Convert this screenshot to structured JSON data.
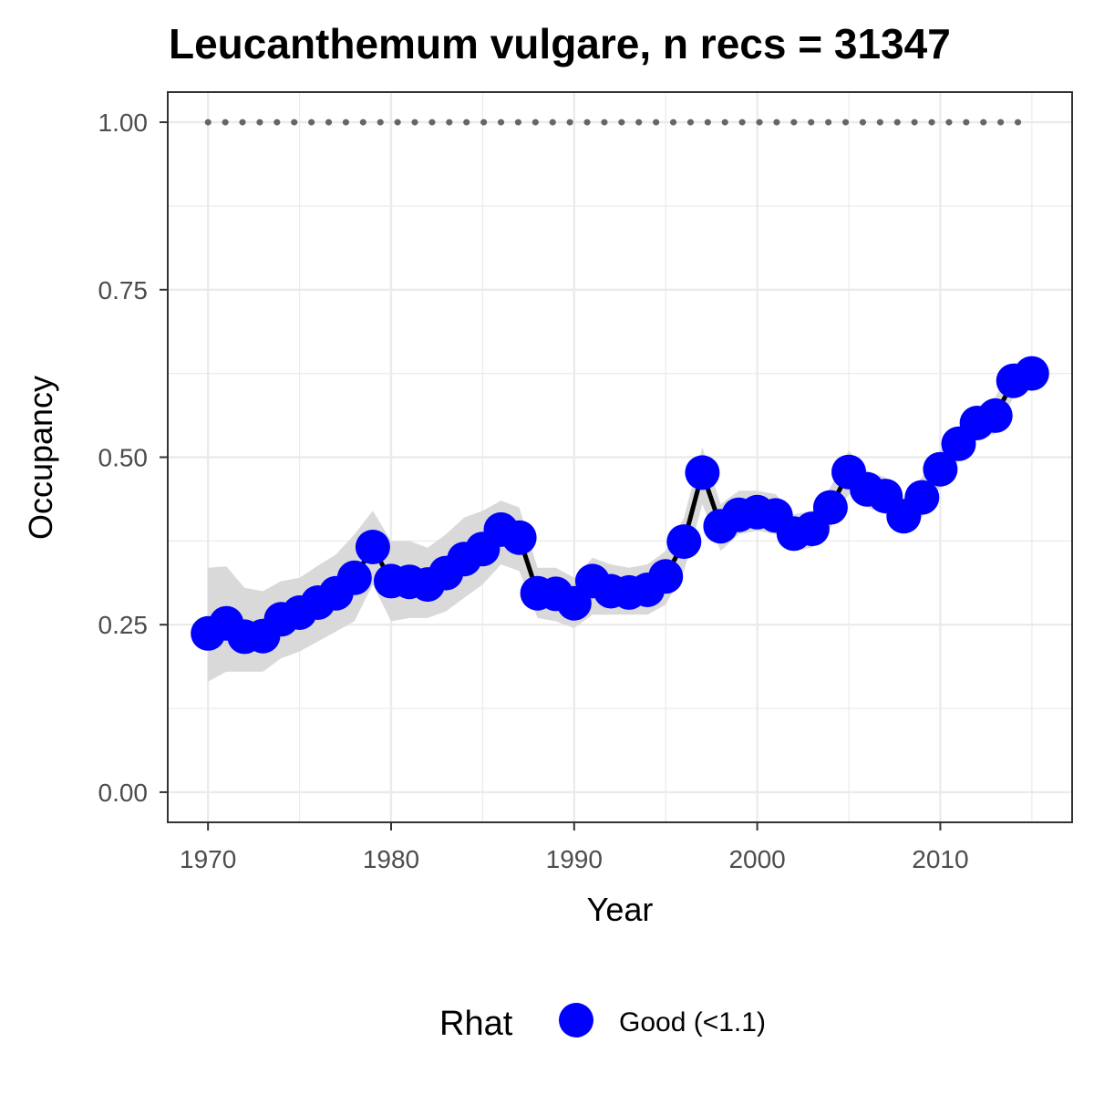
{
  "chart_data": {
    "type": "line",
    "title": "Leucanthemum vulgare, n recs = 31347",
    "xlabel": "Year",
    "ylabel": "Occupancy",
    "xlim": [
      1967.8,
      2017.2
    ],
    "ylim": [
      -0.045,
      1.045
    ],
    "x_ticks": [
      1970,
      1980,
      1990,
      2000,
      2010
    ],
    "x_tick_labels": [
      "1970",
      "1980",
      "1990",
      "2000",
      "2010"
    ],
    "x_minor_ticks": [
      1975,
      1985,
      1995,
      2005,
      2015
    ],
    "y_ticks": [
      0,
      0.25,
      0.5,
      0.75,
      1.0
    ],
    "y_tick_labels": [
      "0.00",
      "0.25",
      "0.50",
      "0.75",
      "1.00"
    ],
    "y_minor_ticks": [
      0.125,
      0.375,
      0.625,
      0.875
    ],
    "grid": true,
    "legend": {
      "title": "Rhat",
      "position": "bottom",
      "entries": [
        {
          "label": "Good (<1.1)",
          "color": "#0000ff"
        }
      ]
    },
    "colors": {
      "points": "#0000ff",
      "line": "#000000",
      "ribbon": "#d9d9d9",
      "reference_line": "#666666",
      "grid": "#ebebeb",
      "panel_border": "#333333"
    },
    "reference_line": {
      "y": 1.0,
      "style": "dotted"
    },
    "series": [
      {
        "x": [
          1970,
          1971,
          1972,
          1973,
          1974,
          1975,
          1976,
          1977,
          1978,
          1979,
          1980,
          1981,
          1982,
          1983,
          1984,
          1985,
          1986,
          1987,
          1988,
          1989,
          1990,
          1991,
          1992,
          1993,
          1994,
          1995,
          1996,
          1997,
          1998,
          1999,
          2000,
          2001,
          2002,
          2003,
          2004,
          2005,
          2006,
          2007,
          2008,
          2009,
          2010,
          2011,
          2012,
          2013,
          2014,
          2015
        ],
        "values": [
          0.237,
          0.252,
          0.232,
          0.233,
          0.258,
          0.268,
          0.283,
          0.297,
          0.32,
          0.366,
          0.315,
          0.314,
          0.31,
          0.327,
          0.348,
          0.363,
          0.392,
          0.38,
          0.297,
          0.296,
          0.282,
          0.315,
          0.3,
          0.298,
          0.302,
          0.322,
          0.374,
          0.477,
          0.397,
          0.414,
          0.418,
          0.413,
          0.386,
          0.393,
          0.425,
          0.478,
          0.452,
          0.442,
          0.412,
          0.44,
          0.482,
          0.52,
          0.551,
          0.562,
          0.614,
          0.625
        ],
        "lower": [
          0.165,
          0.18,
          0.18,
          0.18,
          0.2,
          0.21,
          0.225,
          0.24,
          0.255,
          0.31,
          0.255,
          0.26,
          0.26,
          0.27,
          0.29,
          0.31,
          0.34,
          0.33,
          0.26,
          0.255,
          0.245,
          0.265,
          0.265,
          0.265,
          0.265,
          0.28,
          0.33,
          0.43,
          0.36,
          0.385,
          0.39,
          0.385,
          0.36,
          0.365,
          0.395,
          0.445,
          0.425,
          0.415,
          0.39,
          0.41,
          0.455,
          0.495,
          0.525,
          0.535,
          0.59,
          0.605
        ],
        "upper": [
          0.335,
          0.337,
          0.305,
          0.3,
          0.315,
          0.32,
          0.338,
          0.355,
          0.385,
          0.42,
          0.375,
          0.375,
          0.365,
          0.385,
          0.41,
          0.42,
          0.435,
          0.425,
          0.335,
          0.335,
          0.32,
          0.35,
          0.34,
          0.335,
          0.34,
          0.36,
          0.41,
          0.515,
          0.43,
          0.45,
          0.45,
          0.445,
          0.415,
          0.42,
          0.455,
          0.51,
          0.48,
          0.47,
          0.44,
          0.47,
          0.51,
          0.545,
          0.575,
          0.59,
          0.64,
          0.65
        ]
      }
    ]
  }
}
